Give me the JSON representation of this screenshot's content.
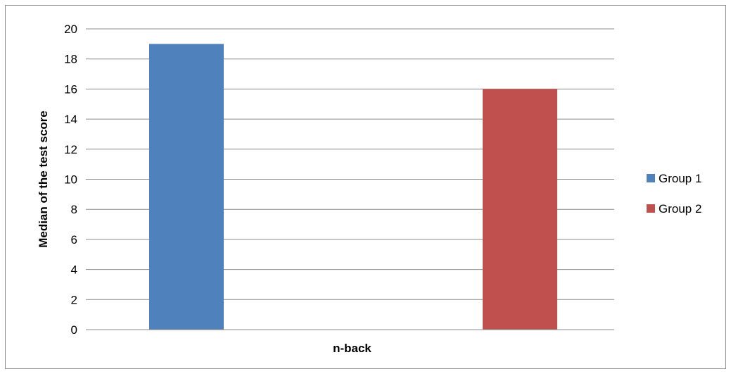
{
  "chart_data": {
    "type": "bar",
    "categories": [
      "n-back"
    ],
    "series": [
      {
        "name": "Group 1",
        "values": [
          19
        ],
        "color": "#4f81bd"
      },
      {
        "name": "Group 2",
        "values": [
          16
        ],
        "color": "#c0504d"
      }
    ],
    "title": "",
    "xlabel": "n-back",
    "ylabel": "Median of the test score",
    "ylim": [
      0,
      20
    ],
    "yticks": [
      0,
      2,
      4,
      6,
      8,
      10,
      12,
      14,
      16,
      18,
      20
    ],
    "grid": true,
    "legend": "right"
  }
}
